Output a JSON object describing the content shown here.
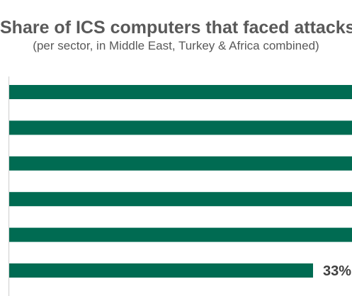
{
  "chart_data": {
    "type": "bar",
    "orientation": "horizontal",
    "title": "Share of ICS computers that faced attacks",
    "subtitle": "(per sector, in Middle East, Turkey & Africa combined)",
    "series": [
      {
        "values": [
          null,
          null,
          null,
          null,
          null,
          33
        ]
      }
    ],
    "value_labels": [
      "",
      "",
      "",
      "",
      "",
      "33%"
    ],
    "grid": false,
    "legend": "none"
  },
  "colors": {
    "bar": "#006b52",
    "axis": "#d9d9d9",
    "title": "#595959",
    "label": "#404040"
  }
}
